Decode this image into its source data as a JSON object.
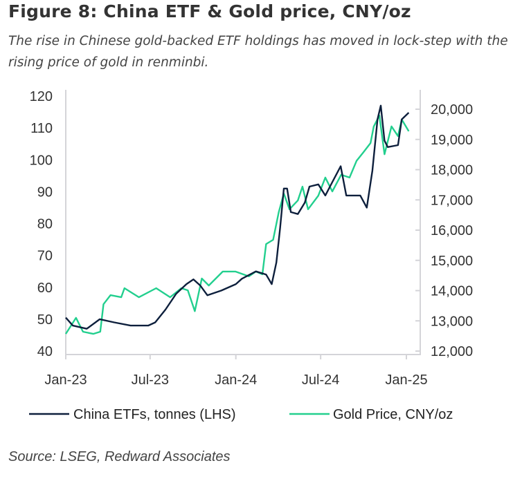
{
  "title": "Figure 8: China ETF & Gold price, CNY/oz",
  "subtitle": "The rise in Chinese gold-backed ETF holdings has moved in lock-step with the rising price of gold in renminbi.",
  "source": "Source: LSEG, Redward Associates",
  "chart_data": {
    "type": "line",
    "title": "Figure 8: China ETF & Gold price, CNY/oz",
    "x_ticks": [
      "Jan-23",
      "Jul-23",
      "Jan-24",
      "Jul-24",
      "Jan-25"
    ],
    "x_tick_dates": [
      "2023-01-01",
      "2023-07-01",
      "2024-01-01",
      "2024-07-01",
      "2025-01-01"
    ],
    "y_left": {
      "ticks": [
        "40",
        "50",
        "60",
        "70",
        "80",
        "90",
        "100",
        "110",
        "120"
      ],
      "range": [
        40,
        120
      ]
    },
    "y_right": {
      "ticks": [
        "12,000",
        "13,000",
        "14,000",
        "15,000",
        "16,000",
        "17,000",
        "18,000",
        "19,000",
        "20,000"
      ],
      "range": [
        12000,
        20000
      ]
    },
    "grid": false,
    "legend_position": "bottom",
    "series": [
      {
        "name": "China ETFs, tonnes (LHS)",
        "axis": "left",
        "color": "#0d1f3c",
        "points": [
          [
            "2023-01-01",
            50.5
          ],
          [
            "2023-01-16",
            48
          ],
          [
            "2023-02-15",
            47
          ],
          [
            "2023-03-15",
            50
          ],
          [
            "2023-04-15",
            49
          ],
          [
            "2023-05-20",
            48
          ],
          [
            "2023-06-27",
            48
          ],
          [
            "2023-07-12",
            49
          ],
          [
            "2023-08-03",
            53
          ],
          [
            "2023-08-26",
            58
          ],
          [
            "2023-09-17",
            61
          ],
          [
            "2023-10-02",
            62.5
          ],
          [
            "2023-10-17",
            60.5
          ],
          [
            "2023-11-01",
            57.5
          ],
          [
            "2023-12-01",
            59
          ],
          [
            "2024-01-01",
            61
          ],
          [
            "2024-01-14",
            62.7
          ],
          [
            "2024-02-13",
            65
          ],
          [
            "2024-03-06",
            64
          ],
          [
            "2024-03-18",
            61
          ],
          [
            "2024-03-28",
            67.8
          ],
          [
            "2024-04-05",
            78.6
          ],
          [
            "2024-04-13",
            91
          ],
          [
            "2024-04-20",
            91
          ],
          [
            "2024-04-28",
            83.6
          ],
          [
            "2024-05-13",
            83
          ],
          [
            "2024-05-28",
            86.6
          ],
          [
            "2024-06-07",
            91.6
          ],
          [
            "2024-06-26",
            92.3
          ],
          [
            "2024-07-11",
            88.8
          ],
          [
            "2024-07-26",
            93
          ],
          [
            "2024-08-13",
            98
          ],
          [
            "2024-08-25",
            88.8
          ],
          [
            "2024-09-24",
            88.8
          ],
          [
            "2024-10-08",
            85
          ],
          [
            "2024-10-20",
            96.6
          ],
          [
            "2024-10-31",
            112.7
          ],
          [
            "2024-11-07",
            117
          ],
          [
            "2024-11-15",
            106
          ],
          [
            "2024-11-22",
            104
          ],
          [
            "2024-12-14",
            104.6
          ],
          [
            "2024-12-22",
            112.7
          ],
          [
            "2025-01-06",
            114.8
          ]
        ]
      },
      {
        "name": "Gold Price, CNY/oz",
        "axis": "right",
        "color": "#22cf8e",
        "points": [
          [
            "2023-01-01",
            12570
          ],
          [
            "2023-01-23",
            13100
          ],
          [
            "2023-02-07",
            12640
          ],
          [
            "2023-03-01",
            12570
          ],
          [
            "2023-03-16",
            12640
          ],
          [
            "2023-03-23",
            13550
          ],
          [
            "2023-04-07",
            13850
          ],
          [
            "2023-04-30",
            13780
          ],
          [
            "2023-05-07",
            14080
          ],
          [
            "2023-06-07",
            13780
          ],
          [
            "2023-07-14",
            14080
          ],
          [
            "2023-08-13",
            13780
          ],
          [
            "2023-09-06",
            14080
          ],
          [
            "2023-09-20",
            14010
          ],
          [
            "2023-10-05",
            13320
          ],
          [
            "2023-10-20",
            14400
          ],
          [
            "2023-11-04",
            14170
          ],
          [
            "2023-12-04",
            14630
          ],
          [
            "2023-12-31",
            14630
          ],
          [
            "2024-01-29",
            14470
          ],
          [
            "2024-02-13",
            14630
          ],
          [
            "2024-02-27",
            14540
          ],
          [
            "2024-03-06",
            15540
          ],
          [
            "2024-03-21",
            15680
          ],
          [
            "2024-04-02",
            16590
          ],
          [
            "2024-04-13",
            17210
          ],
          [
            "2024-04-25",
            16690
          ],
          [
            "2024-05-13",
            16980
          ],
          [
            "2024-05-23",
            17440
          ],
          [
            "2024-06-04",
            16690
          ],
          [
            "2024-06-26",
            17140
          ],
          [
            "2024-07-11",
            17740
          ],
          [
            "2024-07-26",
            17280
          ],
          [
            "2024-08-14",
            17830
          ],
          [
            "2024-09-01",
            17740
          ],
          [
            "2024-09-16",
            18290
          ],
          [
            "2024-10-01",
            18580
          ],
          [
            "2024-10-16",
            18880
          ],
          [
            "2024-10-23",
            19430
          ],
          [
            "2024-11-04",
            19790
          ],
          [
            "2024-11-15",
            18510
          ],
          [
            "2024-11-30",
            19430
          ],
          [
            "2024-12-14",
            19110
          ],
          [
            "2024-12-22",
            19660
          ],
          [
            "2025-01-06",
            19270
          ]
        ]
      }
    ]
  }
}
